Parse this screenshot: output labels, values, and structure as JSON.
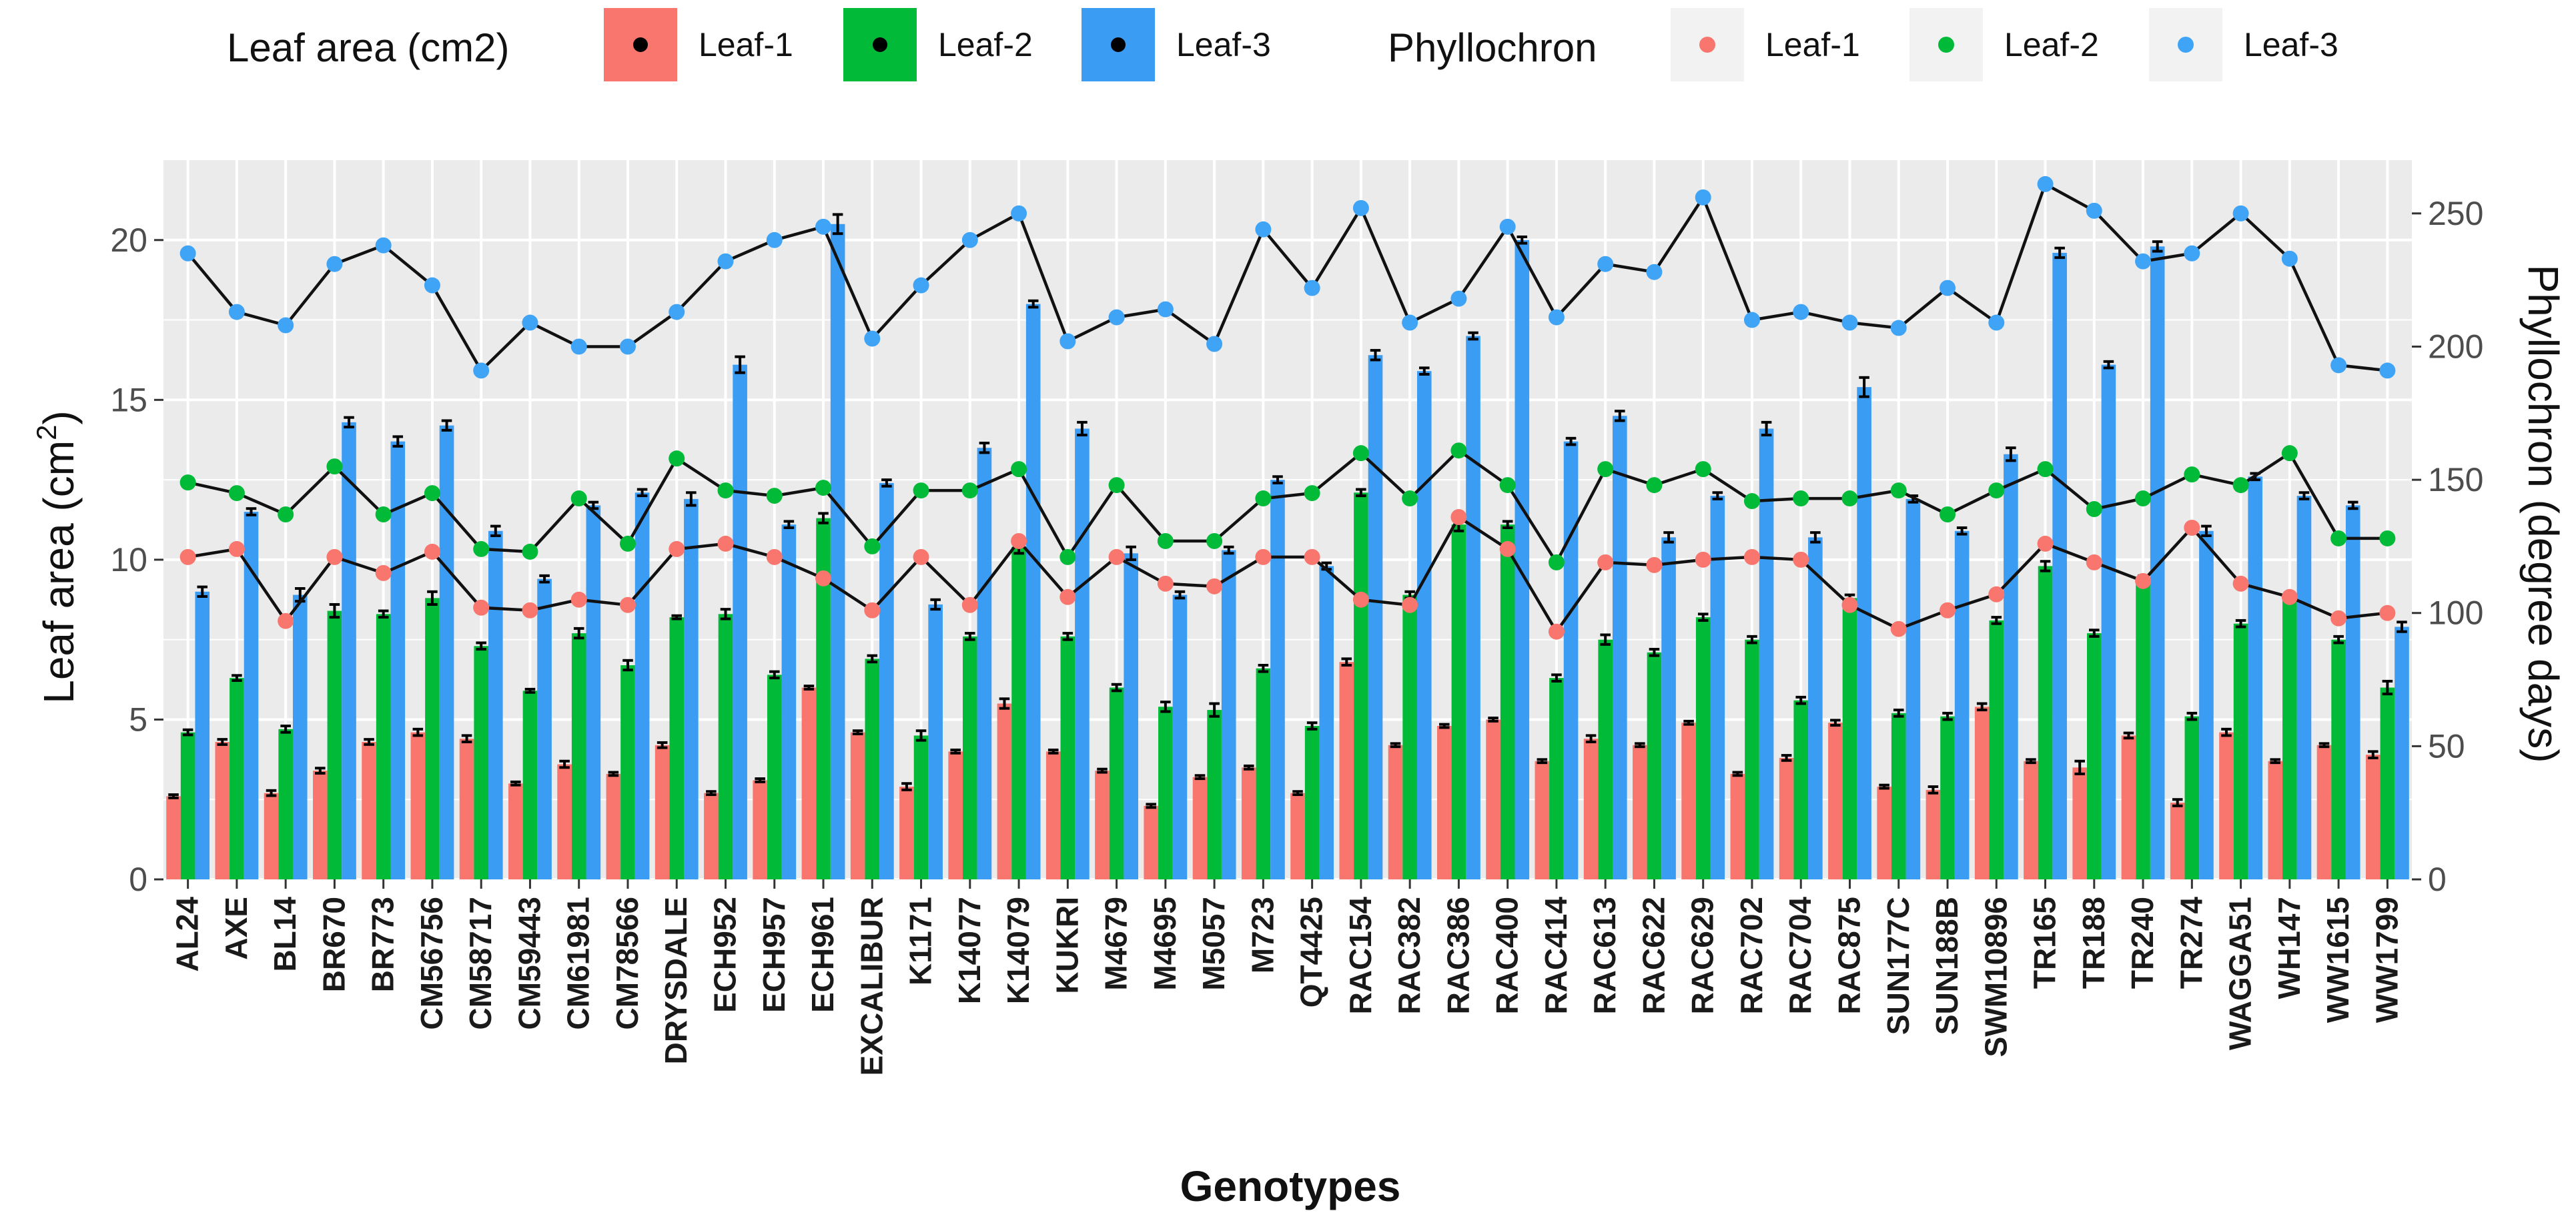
{
  "chart_data": {
    "type": "bar",
    "xlabel": "Genotypes",
    "ylabel": "Leaf area (cm",
    "ylabel_sup": "2",
    "ylabel_close": ")",
    "y2label": "Phyllochron (degree days)",
    "ylim": [
      0,
      22.5
    ],
    "y2lim": [
      0,
      270
    ],
    "y_ticks": [
      "0",
      "5",
      "10",
      "15",
      "20"
    ],
    "y2_ticks": [
      "0",
      "50",
      "100",
      "150",
      "200",
      "250"
    ],
    "legend_position": "top",
    "legend": {
      "bar_title": "Leaf area (cm2)",
      "point_title": "Phyllochron",
      "bar_entries": [
        "Leaf-1",
        "Leaf-2",
        "Leaf-3"
      ],
      "point_entries": [
        "Leaf-1",
        "Leaf-2",
        "Leaf-3"
      ]
    },
    "colors": {
      "leaf1": "#F8766D",
      "leaf2": "#00BA38",
      "leaf3": "#3A9CF2",
      "leaf1_point": "#F8766D",
      "leaf2_point": "#00BA38",
      "leaf3_point": "#40A4F6",
      "panel": "#EBEBEB",
      "grid": "#FFFFFF",
      "line": "#111111"
    },
    "categories": [
      "AL24",
      "AXE",
      "BL14",
      "BR670",
      "BR773",
      "CM56756",
      "CM58717",
      "CM59443",
      "CM61981",
      "CM78566",
      "DRYSDALE",
      "ECH952",
      "ECH957",
      "ECH961",
      "EXCALIBUR",
      "K1171",
      "K14077",
      "K14079",
      "KUKRI",
      "M4679",
      "M4695",
      "M5057",
      "M723",
      "QT4425",
      "RAC154",
      "RAC382",
      "RAC386",
      "RAC400",
      "RAC414",
      "RAC613",
      "RAC622",
      "RAC629",
      "RAC702",
      "RAC704",
      "RAC875",
      "SUN177C",
      "SUN188B",
      "SWM10896",
      "TR165",
      "TR188",
      "TR240",
      "TR274",
      "WAGGA51",
      "WH147",
      "WW1615",
      "WW1799"
    ],
    "series": [
      {
        "name": "Leaf-1",
        "kind": "leaf_area",
        "values": [
          2.6,
          4.3,
          2.7,
          3.4,
          4.3,
          4.6,
          4.4,
          3.0,
          3.6,
          3.3,
          4.2,
          2.7,
          3.1,
          6.0,
          4.6,
          2.9,
          4.0,
          5.5,
          4.0,
          3.4,
          2.3,
          3.2,
          3.5,
          2.7,
          6.8,
          4.2,
          4.8,
          5.0,
          3.7,
          4.4,
          4.2,
          4.9,
          3.3,
          3.8,
          4.9,
          2.9,
          2.8,
          5.4,
          3.7,
          3.5,
          4.5,
          2.4,
          4.6,
          3.7,
          4.2,
          3.9
        ],
        "errors": [
          0.05,
          0.08,
          0.08,
          0.08,
          0.08,
          0.1,
          0.1,
          0.05,
          0.1,
          0.05,
          0.08,
          0.05,
          0.05,
          0.05,
          0.05,
          0.1,
          0.05,
          0.15,
          0.05,
          0.05,
          0.05,
          0.05,
          0.05,
          0.05,
          0.1,
          0.05,
          0.05,
          0.05,
          0.05,
          0.1,
          0.05,
          0.05,
          0.05,
          0.08,
          0.08,
          0.05,
          0.1,
          0.1,
          0.05,
          0.2,
          0.08,
          0.1,
          0.1,
          0.05,
          0.05,
          0.1
        ]
      },
      {
        "name": "Leaf-2",
        "kind": "leaf_area",
        "values": [
          4.6,
          6.3,
          4.7,
          8.4,
          8.3,
          8.8,
          7.3,
          5.9,
          7.7,
          6.7,
          8.2,
          8.3,
          6.4,
          11.3,
          6.9,
          4.5,
          7.6,
          10.4,
          7.6,
          6.0,
          5.4,
          5.3,
          6.6,
          4.8,
          12.1,
          8.9,
          11.1,
          11.1,
          6.3,
          7.5,
          7.1,
          8.2,
          7.5,
          5.6,
          8.8,
          5.2,
          5.1,
          8.1,
          9.8,
          7.7,
          9.4,
          5.1,
          8.0,
          8.8,
          7.5,
          6.0
        ],
        "errors": [
          0.08,
          0.08,
          0.1,
          0.2,
          0.1,
          0.2,
          0.1,
          0.05,
          0.15,
          0.15,
          0.05,
          0.15,
          0.1,
          0.15,
          0.1,
          0.15,
          0.1,
          0.2,
          0.1,
          0.1,
          0.15,
          0.2,
          0.1,
          0.1,
          0.1,
          0.1,
          0.2,
          0.1,
          0.1,
          0.15,
          0.1,
          0.1,
          0.1,
          0.1,
          0.1,
          0.1,
          0.1,
          0.1,
          0.15,
          0.1,
          0.1,
          0.1,
          0.1,
          0.1,
          0.1,
          0.2
        ]
      },
      {
        "name": "Leaf-3",
        "kind": "leaf_area",
        "values": [
          9.0,
          11.5,
          8.9,
          14.3,
          13.7,
          14.2,
          10.9,
          9.4,
          11.7,
          12.1,
          11.9,
          16.1,
          11.1,
          20.5,
          12.4,
          8.6,
          13.5,
          18.0,
          14.1,
          10.2,
          8.9,
          10.3,
          12.5,
          9.8,
          16.4,
          15.9,
          17.0,
          20.0,
          13.7,
          14.5,
          10.7,
          12.0,
          14.1,
          10.7,
          15.4,
          11.9,
          10.9,
          13.3,
          19.6,
          16.1,
          19.8,
          10.9,
          12.6,
          12.0,
          11.7,
          7.9
        ],
        "errors": [
          0.15,
          0.1,
          0.2,
          0.15,
          0.15,
          0.15,
          0.15,
          0.1,
          0.1,
          0.1,
          0.2,
          0.25,
          0.1,
          0.3,
          0.1,
          0.15,
          0.15,
          0.1,
          0.2,
          0.2,
          0.1,
          0.1,
          0.1,
          0.1,
          0.15,
          0.1,
          0.1,
          0.1,
          0.1,
          0.15,
          0.15,
          0.1,
          0.2,
          0.15,
          0.3,
          0.1,
          0.1,
          0.2,
          0.15,
          0.1,
          0.15,
          0.15,
          0.1,
          0.1,
          0.1,
          0.15
        ]
      },
      {
        "name": "Leaf-1",
        "kind": "phyllochron",
        "values": [
          121,
          124,
          97,
          121,
          115,
          123,
          102,
          101,
          105,
          103,
          124,
          126,
          121,
          113,
          101,
          121,
          103,
          127,
          106,
          121,
          111,
          110,
          121,
          121,
          105,
          103,
          136,
          124,
          93,
          119,
          118,
          120,
          121,
          120,
          103,
          94,
          101,
          107,
          126,
          119,
          112,
          132,
          111,
          106,
          98,
          100
        ]
      },
      {
        "name": "Leaf-2",
        "kind": "phyllochron",
        "values": [
          149,
          145,
          137,
          155,
          137,
          145,
          124,
          123,
          143,
          126,
          158,
          146,
          144,
          147,
          125,
          146,
          146,
          154,
          121,
          148,
          127,
          127,
          143,
          145,
          160,
          143,
          161,
          148,
          119,
          154,
          148,
          154,
          142,
          143,
          143,
          146,
          137,
          146,
          154,
          139,
          143,
          152,
          148,
          160,
          128,
          128
        ]
      },
      {
        "name": "Leaf-3",
        "kind": "phyllochron",
        "values": [
          235,
          213,
          208,
          231,
          238,
          223,
          191,
          209,
          200,
          200,
          213,
          232,
          240,
          245,
          203,
          223,
          240,
          250,
          202,
          211,
          214,
          201,
          244,
          222,
          252,
          209,
          218,
          245,
          211,
          231,
          228,
          256,
          210,
          213,
          209,
          207,
          222,
          209,
          261,
          251,
          232,
          235,
          250,
          233,
          193,
          191
        ]
      }
    ]
  }
}
